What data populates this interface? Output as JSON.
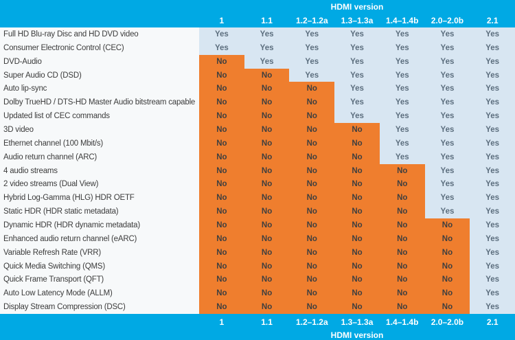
{
  "header": {
    "title": "HDMI version"
  },
  "footer": {
    "title": "HDMI version"
  },
  "colors": {
    "band": "#00A9E4",
    "band_text": "#FFFFFF",
    "yes_bg": "#D8E6F2",
    "no_bg": "#EF7E2E",
    "yes_text": "#5C6E7E",
    "no_text": "#3F3F3F",
    "label_bg": "#F7F9FA",
    "label_text": "#3B3B3B"
  },
  "chart_data": {
    "type": "table",
    "title": "HDMI version",
    "legend_position": "none",
    "columns": [
      "1",
      "1.1",
      "1.2–1.2a",
      "1.3–1.3a",
      "1.4–1.4b",
      "2.0–2.0b",
      "2.1"
    ],
    "rows": [
      {
        "feature": "Full HD Blu-ray Disc and HD DVD video",
        "values": [
          "Yes",
          "Yes",
          "Yes",
          "Yes",
          "Yes",
          "Yes",
          "Yes"
        ]
      },
      {
        "feature": "Consumer Electronic Control (CEC)",
        "values": [
          "Yes",
          "Yes",
          "Yes",
          "Yes",
          "Yes",
          "Yes",
          "Yes"
        ]
      },
      {
        "feature": "DVD-Audio",
        "values": [
          "No",
          "Yes",
          "Yes",
          "Yes",
          "Yes",
          "Yes",
          "Yes"
        ]
      },
      {
        "feature": "Super Audio CD (DSD)",
        "values": [
          "No",
          "No",
          "Yes",
          "Yes",
          "Yes",
          "Yes",
          "Yes"
        ]
      },
      {
        "feature": "Auto lip-sync",
        "values": [
          "No",
          "No",
          "No",
          "Yes",
          "Yes",
          "Yes",
          "Yes"
        ]
      },
      {
        "feature": "Dolby TrueHD / DTS-HD Master Audio bitstream capable",
        "values": [
          "No",
          "No",
          "No",
          "Yes",
          "Yes",
          "Yes",
          "Yes"
        ]
      },
      {
        "feature": "Updated list of CEC commands",
        "values": [
          "No",
          "No",
          "No",
          "Yes",
          "Yes",
          "Yes",
          "Yes"
        ]
      },
      {
        "feature": "3D video",
        "values": [
          "No",
          "No",
          "No",
          "No",
          "Yes",
          "Yes",
          "Yes"
        ]
      },
      {
        "feature": "Ethernet channel (100 Mbit/s)",
        "values": [
          "No",
          "No",
          "No",
          "No",
          "Yes",
          "Yes",
          "Yes"
        ]
      },
      {
        "feature": "Audio return channel (ARC)",
        "values": [
          "No",
          "No",
          "No",
          "No",
          "Yes",
          "Yes",
          "Yes"
        ]
      },
      {
        "feature": "4 audio streams",
        "values": [
          "No",
          "No",
          "No",
          "No",
          "No",
          "Yes",
          "Yes"
        ]
      },
      {
        "feature": "2 video streams (Dual View)",
        "values": [
          "No",
          "No",
          "No",
          "No",
          "No",
          "Yes",
          "Yes"
        ]
      },
      {
        "feature": "Hybrid Log-Gamma (HLG) HDR OETF",
        "values": [
          "No",
          "No",
          "No",
          "No",
          "No",
          "Yes",
          "Yes"
        ]
      },
      {
        "feature": "Static HDR (HDR static metadata)",
        "values": [
          "No",
          "No",
          "No",
          "No",
          "No",
          "Yes",
          "Yes"
        ]
      },
      {
        "feature": "Dynamic HDR (HDR dynamic metadata)",
        "values": [
          "No",
          "No",
          "No",
          "No",
          "No",
          "No",
          "Yes"
        ]
      },
      {
        "feature": "Enhanced audio return channel (eARC)",
        "values": [
          "No",
          "No",
          "No",
          "No",
          "No",
          "No",
          "Yes"
        ]
      },
      {
        "feature": "Variable Refresh Rate (VRR)",
        "values": [
          "No",
          "No",
          "No",
          "No",
          "No",
          "No",
          "Yes"
        ]
      },
      {
        "feature": "Quick Media Switching (QMS)",
        "values": [
          "No",
          "No",
          "No",
          "No",
          "No",
          "No",
          "Yes"
        ]
      },
      {
        "feature": "Quick Frame Transport (QFT)",
        "values": [
          "No",
          "No",
          "No",
          "No",
          "No",
          "No",
          "Yes"
        ]
      },
      {
        "feature": "Auto Low Latency Mode (ALLM)",
        "values": [
          "No",
          "No",
          "No",
          "No",
          "No",
          "No",
          "Yes"
        ]
      },
      {
        "feature": "Display Stream Compression (DSC)",
        "values": [
          "No",
          "No",
          "No",
          "No",
          "No",
          "No",
          "Yes"
        ]
      }
    ]
  }
}
